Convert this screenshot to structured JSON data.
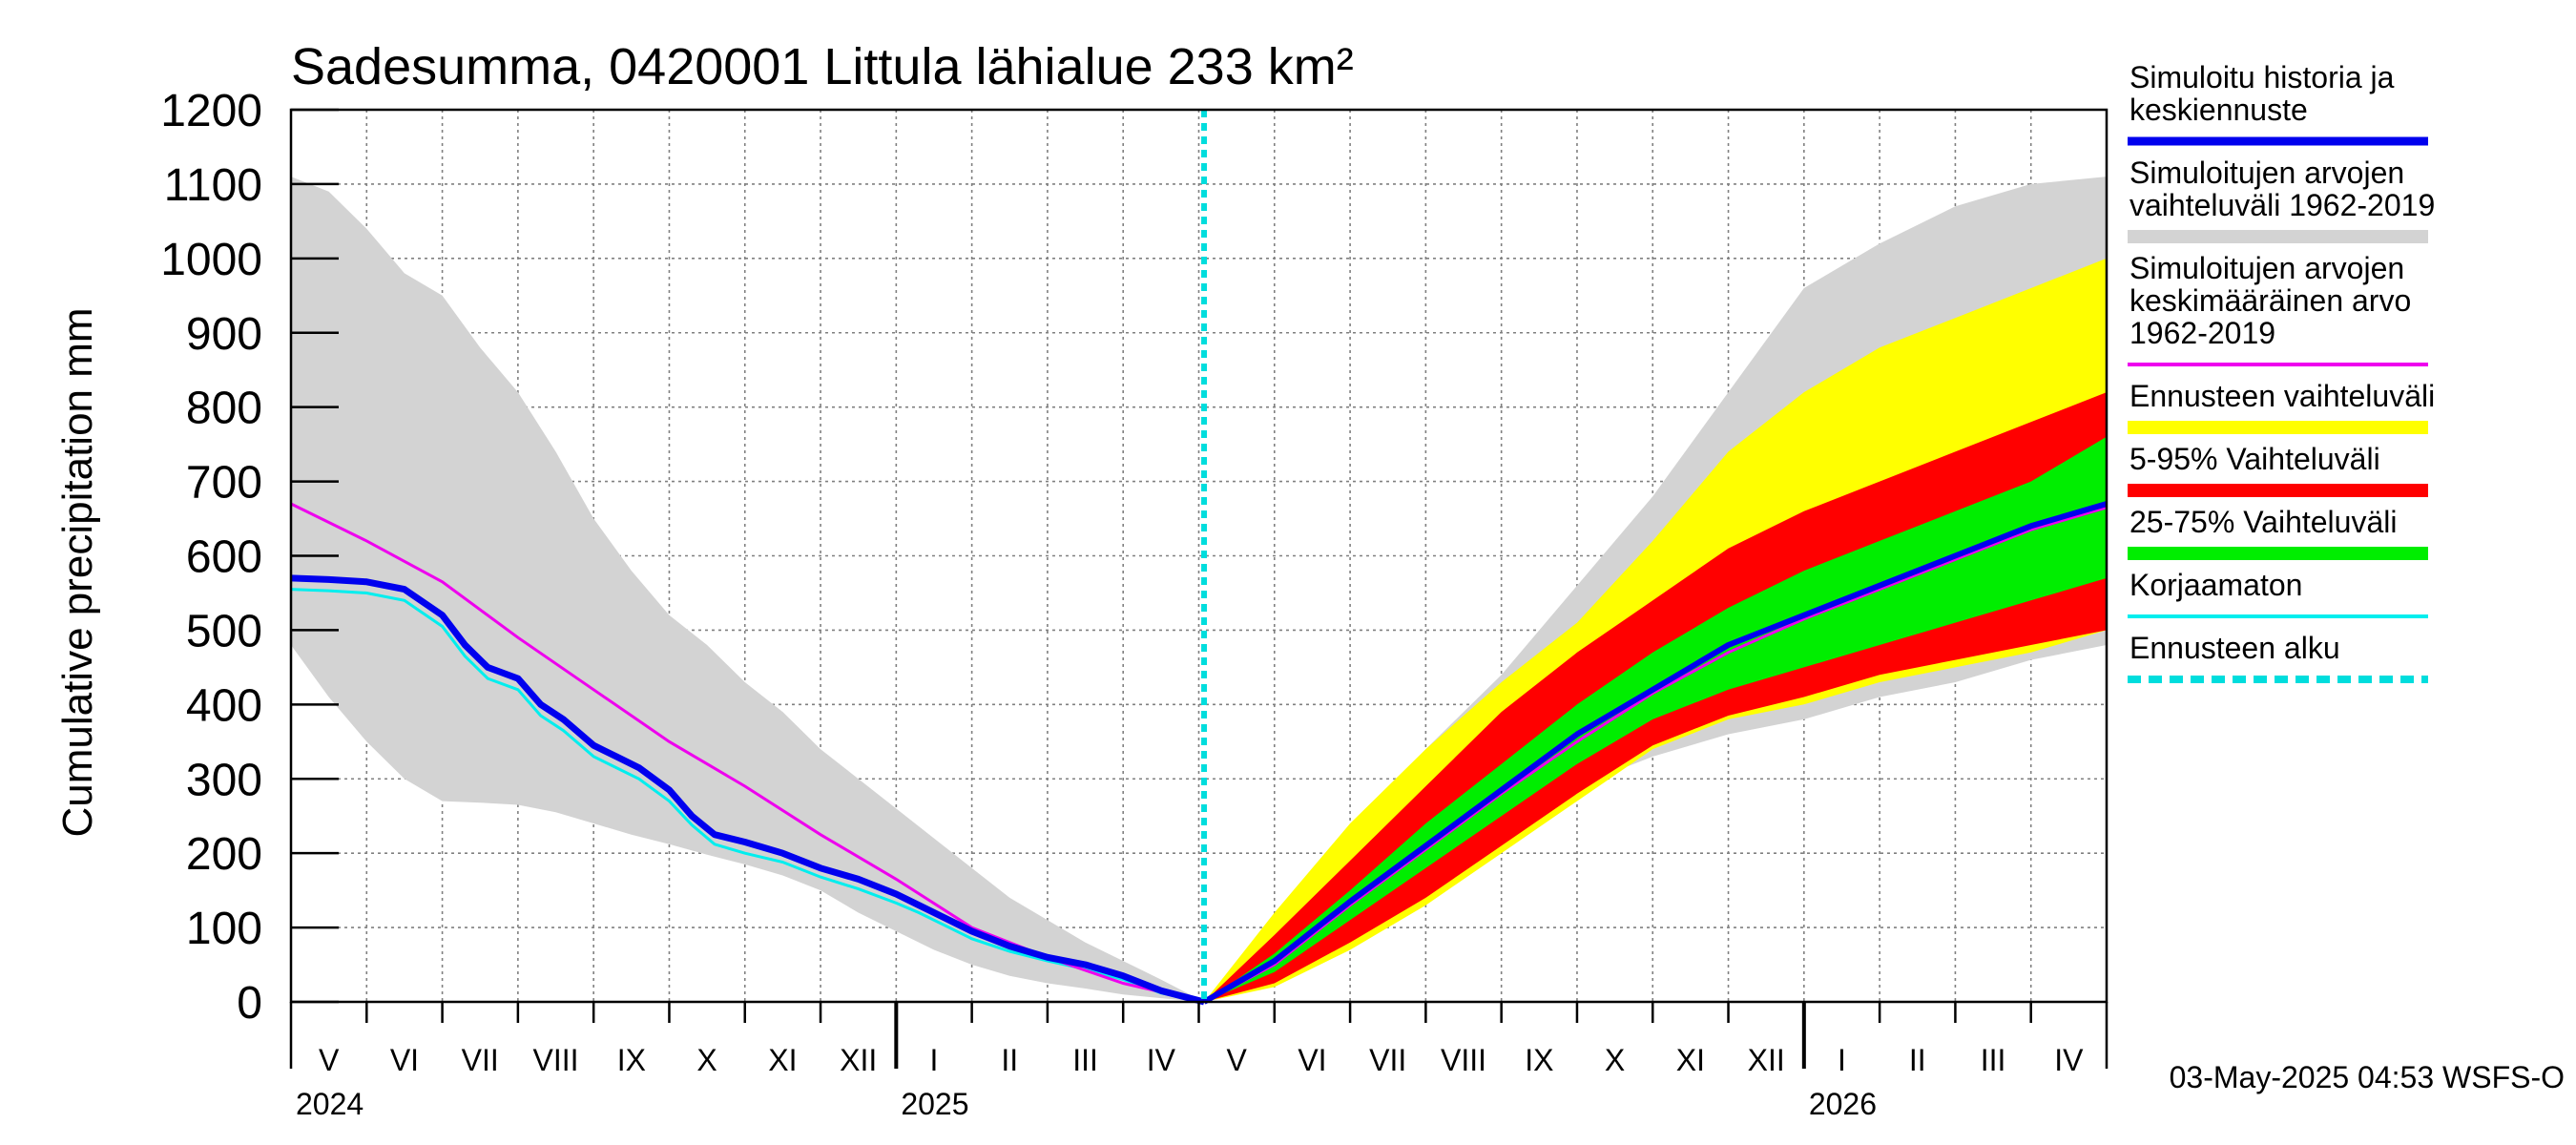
{
  "chart_data": {
    "type": "area",
    "title": "Sadesumma, 0420001 Littula lähialue 233 km²",
    "ylabel": "Cumulative precipitation   mm",
    "ylim": [
      0,
      1200
    ],
    "yticks": [
      0,
      100,
      200,
      300,
      400,
      500,
      600,
      700,
      800,
      900,
      1000,
      1100,
      1200
    ],
    "x_unit": "months since 2024-05-01",
    "xlim": [
      0,
      24
    ],
    "forecast_start_x": 12.07,
    "months": [
      "V",
      "VI",
      "VII",
      "VIII",
      "IX",
      "X",
      "XI",
      "XII",
      "I",
      "II",
      "III",
      "IV",
      "V",
      "VI",
      "VII",
      "VIII",
      "IX",
      "X",
      "XI",
      "XII",
      "I",
      "II",
      "III",
      "IV"
    ],
    "years": [
      {
        "label": "2024",
        "x": 0
      },
      {
        "label": "2025",
        "x": 8
      },
      {
        "label": "2026",
        "x": 20
      }
    ],
    "hist_range": {
      "x": [
        0,
        0.5,
        1,
        1.5,
        2,
        2.5,
        3,
        3.5,
        4,
        4.5,
        5,
        5.5,
        6,
        6.5,
        7,
        7.5,
        8,
        8.5,
        9,
        9.5,
        10,
        10.5,
        11,
        11.5,
        12.07
      ],
      "low": [
        480,
        410,
        350,
        300,
        270,
        268,
        265,
        255,
        240,
        225,
        212,
        198,
        185,
        170,
        150,
        120,
        95,
        70,
        50,
        35,
        25,
        18,
        10,
        5,
        0
      ],
      "high": [
        1110,
        1090,
        1040,
        980,
        950,
        880,
        820,
        740,
        650,
        580,
        520,
        480,
        430,
        390,
        340,
        300,
        260,
        220,
        180,
        140,
        110,
        80,
        55,
        30,
        0
      ]
    },
    "hist_mean": {
      "x": [
        0,
        1,
        2,
        3,
        4,
        5,
        6,
        7,
        8,
        9,
        10,
        11,
        12.07
      ],
      "values": [
        670,
        620,
        565,
        490,
        420,
        350,
        290,
        225,
        165,
        100,
        60,
        25,
        0
      ]
    },
    "hist_sim": {
      "x": [
        0,
        0.5,
        1,
        1.5,
        2,
        2.3,
        2.6,
        3,
        3.3,
        3.6,
        4,
        4.3,
        4.6,
        5,
        5.3,
        5.6,
        6,
        6.5,
        7,
        7.5,
        8,
        8.3,
        8.6,
        9,
        9.5,
        10,
        10.5,
        11,
        11.5,
        12.07
      ],
      "values": [
        570,
        568,
        565,
        555,
        520,
        480,
        450,
        435,
        400,
        380,
        345,
        330,
        315,
        285,
        250,
        225,
        215,
        200,
        180,
        165,
        145,
        130,
        115,
        95,
        75,
        60,
        50,
        35,
        15,
        0
      ]
    },
    "hist_uncorrected": {
      "x": [
        0,
        0.5,
        1,
        1.5,
        2,
        2.3,
        2.6,
        3,
        3.3,
        3.6,
        4,
        4.3,
        4.6,
        5,
        5.3,
        5.6,
        6,
        6.5,
        7,
        7.5,
        8,
        8.3,
        8.6,
        9,
        9.5,
        10,
        10.5,
        11,
        11.5,
        12.07
      ],
      "values": [
        555,
        553,
        550,
        540,
        505,
        465,
        435,
        420,
        385,
        365,
        330,
        315,
        300,
        270,
        238,
        212,
        200,
        188,
        168,
        152,
        133,
        120,
        105,
        85,
        68,
        55,
        44,
        30,
        12,
        0
      ]
    },
    "forecast_x": [
      12.07,
      13,
      14,
      15,
      16,
      17,
      18,
      19,
      20,
      21,
      22,
      23,
      24
    ],
    "forecast_range": {
      "low": [
        0,
        20,
        70,
        130,
        200,
        270,
        340,
        380,
        400,
        430,
        450,
        470,
        500
      ],
      "high": [
        0,
        120,
        240,
        340,
        430,
        510,
        620,
        740,
        820,
        880,
        920,
        960,
        1000
      ]
    },
    "forecast_5_95": {
      "low": [
        0,
        25,
        80,
        140,
        210,
        280,
        345,
        385,
        410,
        440,
        460,
        480,
        500
      ],
      "high": [
        0,
        90,
        190,
        290,
        390,
        470,
        540,
        610,
        660,
        700,
        740,
        780,
        820
      ]
    },
    "forecast_25_75": {
      "low": [
        0,
        40,
        110,
        180,
        250,
        320,
        380,
        420,
        450,
        480,
        510,
        540,
        570
      ],
      "high": [
        0,
        65,
        150,
        240,
        320,
        400,
        470,
        530,
        580,
        620,
        660,
        700,
        760
      ]
    },
    "forecast_median": {
      "values": [
        0,
        55,
        135,
        210,
        285,
        360,
        420,
        480,
        520,
        560,
        600,
        640,
        670
      ]
    },
    "forecast_mean": {
      "values": [
        0,
        50,
        130,
        205,
        280,
        350,
        415,
        470,
        515,
        555,
        595,
        635,
        665
      ]
    },
    "future_hist_range": {
      "low": [
        0,
        30,
        90,
        160,
        230,
        290,
        330,
        360,
        380,
        410,
        430,
        460,
        480
      ],
      "high": [
        0,
        110,
        230,
        340,
        440,
        560,
        680,
        820,
        960,
        1020,
        1070,
        1100,
        1110
      ]
    },
    "legend": [
      {
        "lines": [
          "Simuloitu historia ja",
          "keskiennuste"
        ],
        "color": "#0000ee",
        "style": "thick"
      },
      {
        "lines": [
          "Simuloitujen arvojen",
          "vaihteluväli 1962-2019"
        ],
        "color": "#d3d3d3",
        "style": "band"
      },
      {
        "lines": [
          "Simuloitujen arvojen",
          "keskimääräinen arvo",
          "   1962-2019"
        ],
        "color": "#ee00ee",
        "style": "thin"
      },
      {
        "lines": [
          "Ennusteen vaihteluväli"
        ],
        "color": "#ffff00",
        "style": "band"
      },
      {
        "lines": [
          "5-95% Vaihteluväli"
        ],
        "color": "#ff0000",
        "style": "band"
      },
      {
        "lines": [
          "25-75% Vaihteluväli"
        ],
        "color": "#00ee00",
        "style": "band"
      },
      {
        "lines": [
          "Korjaamaton"
        ],
        "color": "#00eeee",
        "style": "thin"
      },
      {
        "lines": [
          "Ennusteen alku"
        ],
        "color": "#00dddd",
        "style": "dashed"
      }
    ],
    "timestamp": "03-May-2025 04:53 WSFS-O"
  }
}
